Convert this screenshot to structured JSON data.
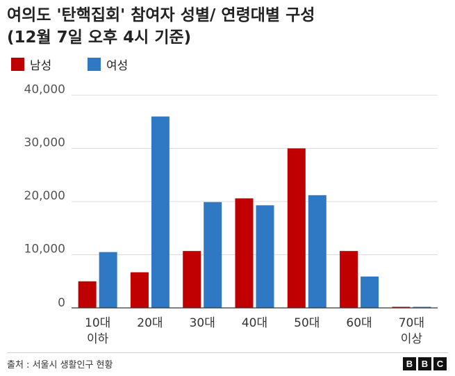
{
  "title_lines": [
    "여의도 '탄핵집회' 참여자 성별/ 연령대별 구성",
    "(12월 7일 오후 4시 기준)"
  ],
  "source": "출처 : 서울시 생활인구 현황",
  "logo": [
    "B",
    "B",
    "C"
  ],
  "chart_data": {
    "type": "bar",
    "title": "여의도 '탄핵집회' 참여자 성별/ 연령대별 구성 (12월 7일 오후 4시 기준)",
    "categories": [
      [
        "10대",
        "이하"
      ],
      [
        "20대"
      ],
      [
        "30대"
      ],
      [
        "40대"
      ],
      [
        "50대"
      ],
      [
        "60대"
      ],
      [
        "70대",
        "이상"
      ]
    ],
    "series": [
      {
        "name": "남성",
        "color": "#c00000",
        "values": [
          5000,
          6700,
          10700,
          20600,
          30000,
          10700,
          200
        ]
      },
      {
        "name": "여성",
        "color": "#2f78c4",
        "values": [
          10500,
          36000,
          19900,
          19300,
          21200,
          5900,
          200
        ]
      }
    ],
    "y_ticks": [
      0,
      10000,
      20000,
      30000,
      40000
    ],
    "y_tick_labels": [
      "0",
      "10,000",
      "20,000",
      "30,000",
      "40,000"
    ],
    "ylim": [
      0,
      40000
    ],
    "grid": true,
    "legend_position": "top-left"
  }
}
